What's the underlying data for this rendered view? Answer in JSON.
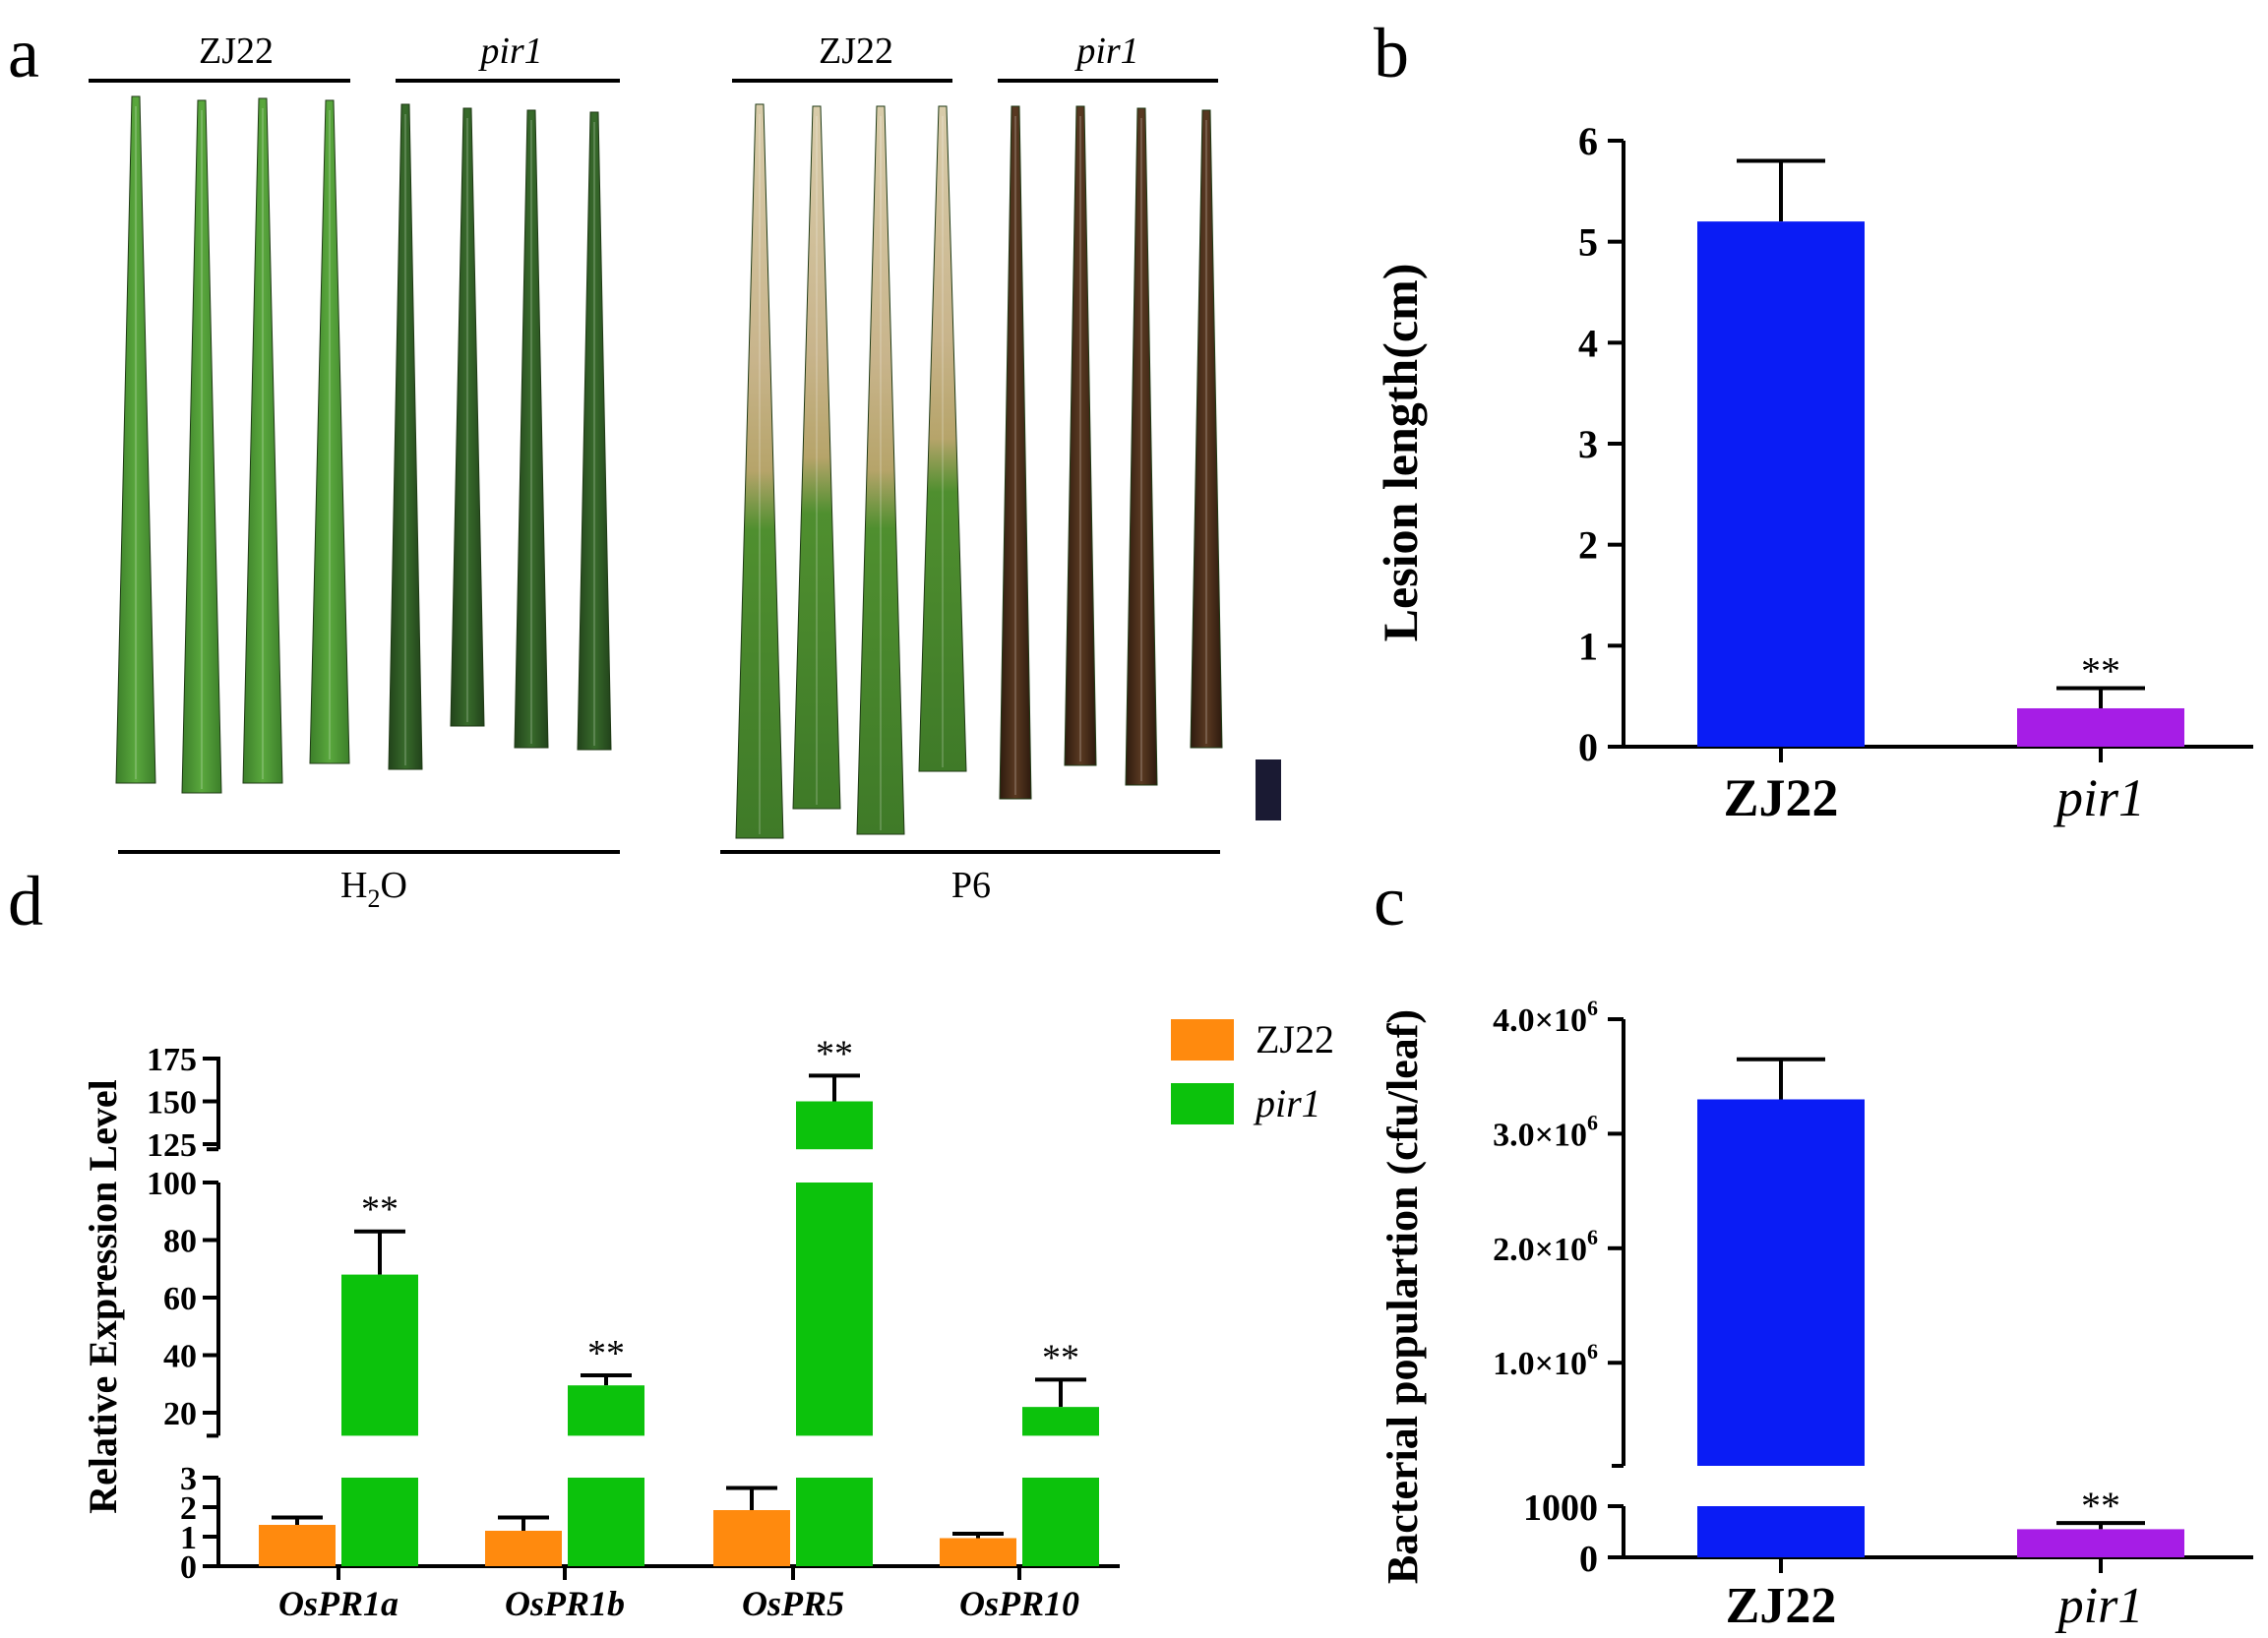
{
  "colors": {
    "zj22_bar": "#0a1cf5",
    "pir1_bar": "#a61de6",
    "zj22_expr": "#ff8a0e",
    "pir1_expr": "#0cc20c",
    "leaf_healthy": "#4d9a33",
    "leaf_dark": "#2e5a24",
    "lesion": "#c9b58f",
    "brown_leaf": "#4a2c18",
    "scale_bar": "#1a1a33"
  },
  "panel_a": {
    "panel_label": "a",
    "h2o_group": {
      "zj22_label": "ZJ22",
      "pir1_label": "pir1",
      "treatment_prefix": "H",
      "treatment_subscript": "2",
      "treatment_suffix": "O"
    },
    "p6_group": {
      "zj22_label": "ZJ22",
      "pir1_label": "pir1",
      "treatment": "P6"
    },
    "leaf_photo": "rice leaf photographs: ZJ22 and pir1 leaves, mock (H2O) and P6-inoculated"
  },
  "chart_data": [
    {
      "panel": "b",
      "panel_label": "b",
      "type": "bar",
      "title": "",
      "ylabel": "Lesion length(cm)",
      "xlabel": "",
      "categories": [
        "ZJ22",
        "pir1"
      ],
      "values": [
        5.2,
        0.38
      ],
      "errors": [
        0.6,
        0.2
      ],
      "significance": [
        "",
        "**"
      ],
      "ylim": [
        0,
        6
      ],
      "yticks": [
        "0",
        "1",
        "2",
        "3",
        "4",
        "5",
        "6"
      ]
    },
    {
      "panel": "c",
      "panel_label": "c",
      "type": "bar",
      "title": "",
      "ylabel": "Bacterial populartion (cfu/leaf)",
      "xlabel": "",
      "categories": [
        "ZJ22",
        "pir1"
      ],
      "values": [
        3300000,
        550
      ],
      "errors": [
        350000,
        120
      ],
      "significance": [
        "",
        "**"
      ],
      "axis_break": true,
      "lower_ylim": [
        0,
        1000
      ],
      "upper_ylim": [
        1000,
        4000000
      ],
      "yticks_lower": [
        "0",
        "1000"
      ],
      "yticks_upper": [
        {
          "mantissa": "1.0",
          "times": "×10",
          "exp": "6"
        },
        {
          "mantissa": "2.0",
          "times": "×10",
          "exp": "6"
        },
        {
          "mantissa": "3.0",
          "times": "×10",
          "exp": "6"
        },
        {
          "mantissa": "4.0",
          "times": "×10",
          "exp": "6"
        }
      ]
    },
    {
      "panel": "d",
      "panel_label": "d",
      "type": "bar",
      "title": "",
      "ylabel": "Relative Expression Level",
      "xlabel": "",
      "categories": [
        "OsPR1a",
        "OsPR1b",
        "OsPR5",
        "OsPR10"
      ],
      "series": [
        {
          "name": "ZJ22",
          "values": [
            1.4,
            1.2,
            1.9,
            0.95
          ],
          "errors": [
            0.25,
            0.45,
            0.75,
            0.15
          ]
        },
        {
          "name": "pir1",
          "values": [
            68,
            29.5,
            150,
            22
          ],
          "errors": [
            15,
            3.5,
            15,
            9.5
          ]
        }
      ],
      "significance": [
        "**",
        "**",
        "**",
        "**"
      ],
      "axis_breaks": [
        [
          3,
          12
        ],
        [
          100,
          122
        ]
      ],
      "yticks_low": [
        "0",
        "1",
        "2",
        "3"
      ],
      "yticks_mid": [
        "20",
        "40",
        "60",
        "80",
        "100"
      ],
      "yticks_high": [
        "125",
        "150",
        "175"
      ],
      "legend": [
        "ZJ22",
        "pir1"
      ],
      "legend_position": "top-right"
    }
  ]
}
